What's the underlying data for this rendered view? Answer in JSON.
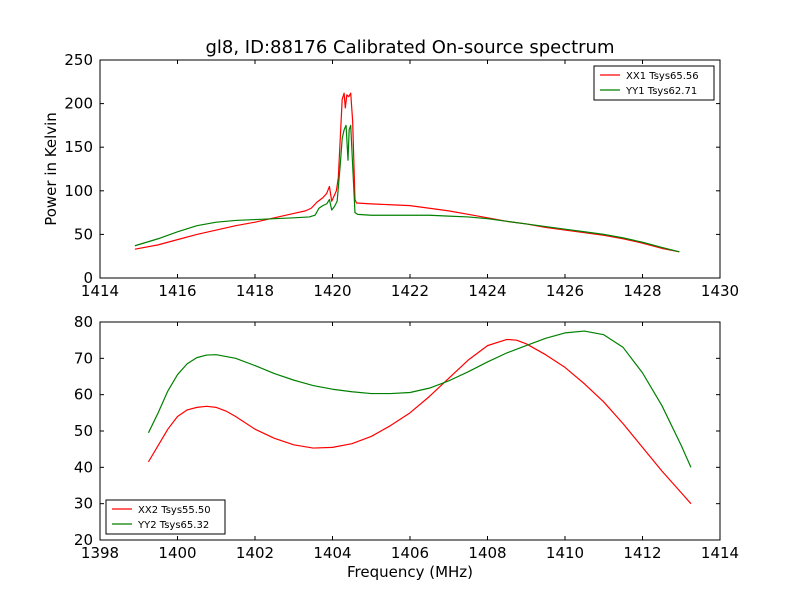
{
  "chart_data": [
    {
      "type": "line",
      "title": "gl8, ID:88176 Calibrated On-source spectrum",
      "xlabel": "",
      "ylabel": "Power in Kelvin",
      "xlim": [
        1414,
        1430
      ],
      "ylim": [
        0,
        250
      ],
      "xticks": [
        1414,
        1416,
        1418,
        1420,
        1422,
        1424,
        1426,
        1428,
        1430
      ],
      "yticks": [
        0,
        50,
        100,
        150,
        200,
        250
      ],
      "grid": false,
      "legend_position": "top-right",
      "series": [
        {
          "name": "XX1 Tsys65.56",
          "color": "#ff0000",
          "points": [
            [
              1414.9,
              33
            ],
            [
              1415.5,
              38
            ],
            [
              1416.0,
              44
            ],
            [
              1416.5,
              50
            ],
            [
              1417.0,
              55
            ],
            [
              1417.5,
              60
            ],
            [
              1418.0,
              64
            ],
            [
              1418.5,
              69
            ],
            [
              1419.0,
              74
            ],
            [
              1419.3,
              77
            ],
            [
              1419.45,
              80
            ],
            [
              1419.6,
              87
            ],
            [
              1419.75,
              92
            ],
            [
              1419.85,
              97
            ],
            [
              1419.92,
              105
            ],
            [
              1419.98,
              88
            ],
            [
              1420.05,
              95
            ],
            [
              1420.1,
              100
            ],
            [
              1420.15,
              115
            ],
            [
              1420.2,
              160
            ],
            [
              1420.25,
              205
            ],
            [
              1420.3,
              212
            ],
            [
              1420.33,
              195
            ],
            [
              1420.37,
              210
            ],
            [
              1420.42,
              208
            ],
            [
              1420.47,
              212
            ],
            [
              1420.52,
              180
            ],
            [
              1420.58,
              90
            ],
            [
              1420.62,
              86
            ],
            [
              1421.0,
              85
            ],
            [
              1421.5,
              84
            ],
            [
              1422.0,
              83
            ],
            [
              1422.5,
              80
            ],
            [
              1423.0,
              77
            ],
            [
              1423.5,
              73
            ],
            [
              1424.0,
              69
            ],
            [
              1424.5,
              65
            ],
            [
              1425.0,
              62
            ],
            [
              1425.5,
              58
            ],
            [
              1426.0,
              55
            ],
            [
              1426.5,
              52
            ],
            [
              1427.0,
              49
            ],
            [
              1427.5,
              45
            ],
            [
              1428.0,
              40
            ],
            [
              1428.5,
              34
            ],
            [
              1428.95,
              30
            ]
          ]
        },
        {
          "name": "YY1 Tsys62.71",
          "color": "#008000",
          "points": [
            [
              1414.9,
              37
            ],
            [
              1415.5,
              45
            ],
            [
              1416.0,
              53
            ],
            [
              1416.5,
              60
            ],
            [
              1417.0,
              64
            ],
            [
              1417.5,
              66
            ],
            [
              1418.0,
              67
            ],
            [
              1418.5,
              68
            ],
            [
              1419.0,
              69
            ],
            [
              1419.4,
              70
            ],
            [
              1419.55,
              72
            ],
            [
              1419.65,
              80
            ],
            [
              1419.75,
              83
            ],
            [
              1419.85,
              85
            ],
            [
              1419.92,
              90
            ],
            [
              1419.98,
              78
            ],
            [
              1420.05,
              82
            ],
            [
              1420.12,
              88
            ],
            [
              1420.2,
              130
            ],
            [
              1420.25,
              160
            ],
            [
              1420.3,
              170
            ],
            [
              1420.35,
              175
            ],
            [
              1420.4,
              135
            ],
            [
              1420.43,
              170
            ],
            [
              1420.47,
              175
            ],
            [
              1420.53,
              120
            ],
            [
              1420.58,
              75
            ],
            [
              1420.65,
              73
            ],
            [
              1421.0,
              72
            ],
            [
              1421.5,
              72
            ],
            [
              1422.0,
              72
            ],
            [
              1422.5,
              72
            ],
            [
              1423.0,
              71
            ],
            [
              1423.5,
              70
            ],
            [
              1424.0,
              68
            ],
            [
              1424.5,
              65
            ],
            [
              1425.0,
              62
            ],
            [
              1425.5,
              59
            ],
            [
              1426.0,
              56
            ],
            [
              1426.5,
              53
            ],
            [
              1427.0,
              50
            ],
            [
              1427.5,
              46
            ],
            [
              1428.0,
              41
            ],
            [
              1428.5,
              35
            ],
            [
              1428.95,
              30
            ]
          ]
        }
      ]
    },
    {
      "type": "line",
      "title": "",
      "xlabel": "Frequency (MHz)",
      "ylabel": "",
      "xlim": [
        1398,
        1414
      ],
      "ylim": [
        20,
        80
      ],
      "xticks": [
        1398,
        1400,
        1402,
        1404,
        1406,
        1408,
        1410,
        1412,
        1414
      ],
      "yticks": [
        20,
        30,
        40,
        50,
        60,
        70,
        80
      ],
      "grid": false,
      "legend_position": "bottom-left",
      "series": [
        {
          "name": "XX2 Tsys55.50",
          "color": "#ff0000",
          "points": [
            [
              1399.25,
              41.5
            ],
            [
              1399.5,
              46
            ],
            [
              1399.75,
              50.5
            ],
            [
              1400.0,
              54
            ],
            [
              1400.25,
              55.8
            ],
            [
              1400.5,
              56.5
            ],
            [
              1400.75,
              56.8
            ],
            [
              1401.0,
              56.5
            ],
            [
              1401.25,
              55.5
            ],
            [
              1401.5,
              54
            ],
            [
              1402.0,
              50.5
            ],
            [
              1402.5,
              48
            ],
            [
              1403.0,
              46.2
            ],
            [
              1403.5,
              45.3
            ],
            [
              1404.0,
              45.5
            ],
            [
              1404.5,
              46.5
            ],
            [
              1405.0,
              48.5
            ],
            [
              1405.5,
              51.5
            ],
            [
              1406.0,
              55
            ],
            [
              1406.5,
              59.5
            ],
            [
              1407.0,
              64.5
            ],
            [
              1407.5,
              69.5
            ],
            [
              1408.0,
              73.5
            ],
            [
              1408.5,
              75.2
            ],
            [
              1408.75,
              75
            ],
            [
              1409.0,
              74
            ],
            [
              1409.5,
              71
            ],
            [
              1410.0,
              67.5
            ],
            [
              1410.5,
              63
            ],
            [
              1411.0,
              58
            ],
            [
              1411.5,
              52
            ],
            [
              1412.0,
              45.5
            ],
            [
              1412.5,
              39
            ],
            [
              1413.0,
              33
            ],
            [
              1413.25,
              30
            ]
          ]
        },
        {
          "name": "YY2 Tsys65.32",
          "color": "#008000",
          "points": [
            [
              1399.25,
              49.5
            ],
            [
              1399.5,
              55
            ],
            [
              1399.75,
              61
            ],
            [
              1400.0,
              65.5
            ],
            [
              1400.25,
              68.5
            ],
            [
              1400.5,
              70.2
            ],
            [
              1400.75,
              70.9
            ],
            [
              1401.0,
              71
            ],
            [
              1401.5,
              70
            ],
            [
              1402.0,
              68
            ],
            [
              1402.5,
              65.8
            ],
            [
              1403.0,
              64
            ],
            [
              1403.5,
              62.5
            ],
            [
              1404.0,
              61.5
            ],
            [
              1404.5,
              60.8
            ],
            [
              1405.0,
              60.3
            ],
            [
              1405.5,
              60.3
            ],
            [
              1406.0,
              60.6
            ],
            [
              1406.5,
              61.8
            ],
            [
              1407.0,
              63.8
            ],
            [
              1407.5,
              66.3
            ],
            [
              1408.0,
              69
            ],
            [
              1408.5,
              71.5
            ],
            [
              1409.0,
              73.5
            ],
            [
              1409.5,
              75.5
            ],
            [
              1410.0,
              77
            ],
            [
              1410.5,
              77.5
            ],
            [
              1411.0,
              76.5
            ],
            [
              1411.5,
              73
            ],
            [
              1412.0,
              66
            ],
            [
              1412.5,
              57
            ],
            [
              1413.0,
              46
            ],
            [
              1413.25,
              40
            ]
          ]
        }
      ]
    }
  ]
}
